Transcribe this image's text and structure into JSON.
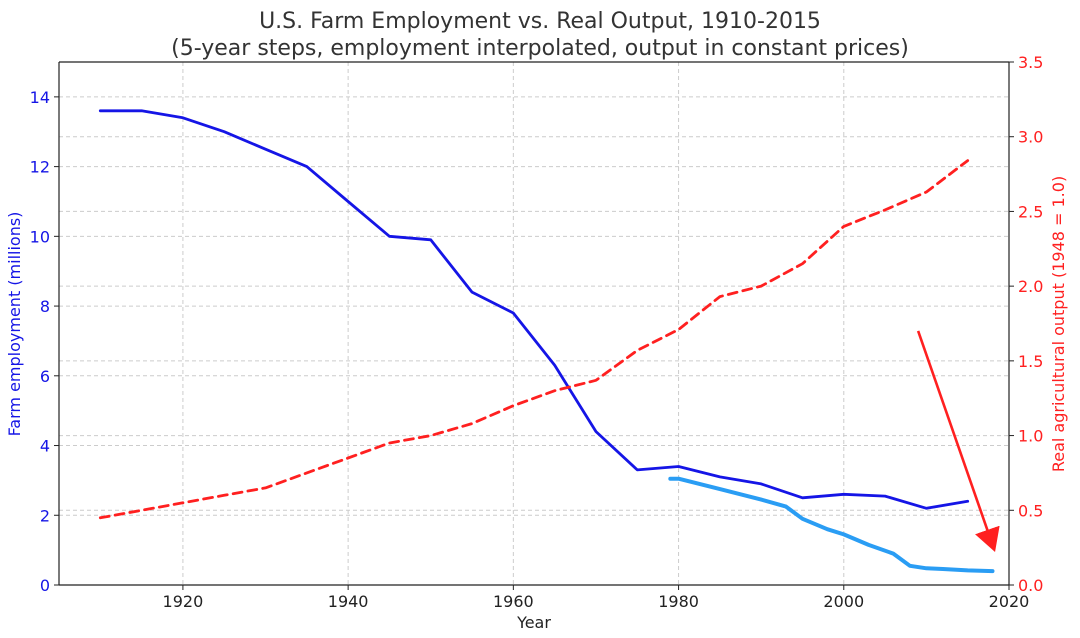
{
  "colors": {
    "employment": "#1515e6",
    "output": "#ff2020",
    "recent_employment": "#2a9df4",
    "grid": "#cccccc",
    "axis": "#222222",
    "title": "#333333"
  },
  "chart_data": {
    "type": "line",
    "title": "U.S. Farm Employment vs. Real Output, 1910-2015",
    "subtitle": "(5-year steps, employment interpolated, output in constant prices)",
    "xlabel": "Year",
    "ylabel_left": "Farm employment (millions)",
    "ylabel_right": "Real agricultural output (1948 = 1.0)",
    "xlim": [
      1905,
      2020
    ],
    "ylim_left": [
      0,
      15
    ],
    "ylim_right": [
      0,
      3.5
    ],
    "x_ticks": [
      1920,
      1940,
      1960,
      1980,
      2000,
      2020
    ],
    "y_left_ticks": [
      0,
      2,
      4,
      6,
      8,
      10,
      12,
      14
    ],
    "y_right_ticks": [
      0.0,
      0.5,
      1.0,
      1.5,
      2.0,
      2.5,
      3.0,
      3.5
    ],
    "grid": true,
    "series": [
      {
        "axis": "left",
        "style": "solid",
        "x": [
          1910,
          1915,
          1920,
          1925,
          1930,
          1935,
          1940,
          1945,
          1950,
          1955,
          1960,
          1965,
          1970,
          1975,
          1980,
          1985,
          1990,
          1995,
          2000,
          2005,
          2010,
          2015
        ],
        "values": [
          13.6,
          13.6,
          13.4,
          13.0,
          12.5,
          12.0,
          11.0,
          10.0,
          9.9,
          8.4,
          7.8,
          6.3,
          4.4,
          3.3,
          3.4,
          3.1,
          2.9,
          2.5,
          2.6,
          2.55,
          2.2,
          2.4
        ]
      },
      {
        "axis": "right",
        "style": "dashed",
        "x": [
          1910,
          1915,
          1920,
          1925,
          1930,
          1935,
          1940,
          1945,
          1950,
          1955,
          1960,
          1965,
          1970,
          1975,
          1980,
          1985,
          1990,
          1995,
          2000,
          2005,
          2010,
          2015
        ],
        "values": [
          0.45,
          0.5,
          0.55,
          0.6,
          0.65,
          0.75,
          0.85,
          0.95,
          1.0,
          1.08,
          1.2,
          1.3,
          1.37,
          1.57,
          1.71,
          1.93,
          2.0,
          2.15,
          2.4,
          2.51,
          2.63,
          2.84
        ]
      },
      {
        "axis": "left",
        "style": "solid",
        "x": [
          1979,
          1980,
          1985,
          1990,
          1993,
          1995,
          1998,
          2000,
          2003,
          2006,
          2008,
          2010,
          2012,
          2015,
          2018
        ],
        "values": [
          3.05,
          3.05,
          2.75,
          2.45,
          2.25,
          1.9,
          1.6,
          1.45,
          1.15,
          0.9,
          0.55,
          0.48,
          0.46,
          0.42,
          0.4
        ]
      }
    ],
    "annotations": [
      {
        "type": "arrow",
        "x_start": 2009,
        "y_start_right": 1.7,
        "x_end": 2018,
        "y_end_right": 0.27
      }
    ]
  }
}
